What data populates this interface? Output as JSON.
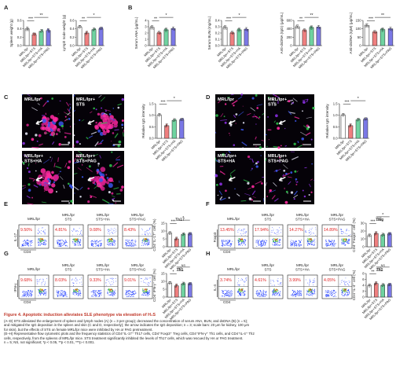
{
  "colors": {
    "g1": "#ffffff",
    "g2": "#ef7f7f",
    "g3": "#6fd3a0",
    "g4": "#7b78e6",
    "sig": "#111111",
    "red_text": "#e02020",
    "stroke": "#333333"
  },
  "group_labels": [
    "MRL/lpr",
    "MRL/lpr+STS",
    "MRL/lpr+STS+HA",
    "MRL/lpr+STS+PAG"
  ],
  "panel_letters": [
    "A",
    "B",
    "C",
    "D",
    "E",
    "F",
    "G",
    "H"
  ],
  "panelA": [
    {
      "ylabel": "Spleen weight (g)",
      "yticks": [
        "0.0",
        "0.2",
        "0.4",
        "0.6"
      ],
      "ylim": [
        0,
        0.6
      ],
      "values": [
        0.4,
        0.26,
        0.34,
        0.36
      ],
      "sig": [
        {
          "from": 0,
          "to": 1,
          "label": "***",
          "level": 1
        },
        {
          "from": 1,
          "to": 3,
          "label": "**",
          "level": 2
        }
      ]
    },
    {
      "ylabel": "Lymph node weight (g)",
      "yticks": [
        "0.0",
        "0.2",
        "0.4",
        "0.6"
      ],
      "ylim": [
        0,
        0.6
      ],
      "values": [
        0.44,
        0.3,
        0.38,
        0.4
      ],
      "sig": [
        {
          "from": 0,
          "to": 1,
          "label": "**",
          "level": 1
        },
        {
          "from": 1,
          "to": 3,
          "label": "*",
          "level": 2
        }
      ]
    }
  ],
  "panelB": [
    {
      "ylabel": "Serum ANA (μg/mL)",
      "yticks": [
        "0",
        "1",
        "2",
        "3",
        "4"
      ],
      "ylim": [
        0,
        4
      ],
      "values": [
        2.9,
        2.0,
        2.5,
        2.7
      ],
      "sig": [
        {
          "from": 0,
          "to": 1,
          "label": "**",
          "level": 1
        },
        {
          "from": 1,
          "to": 3,
          "label": "*",
          "level": 2
        }
      ]
    },
    {
      "ylabel": "Serum BUN (mg/mL)",
      "yticks": [
        "0.0",
        "0.1",
        "0.2",
        "0.3",
        "0.4"
      ],
      "ylim": [
        0,
        0.4
      ],
      "values": [
        0.29,
        0.2,
        0.25,
        0.26
      ],
      "sig": [
        {
          "from": 0,
          "to": 1,
          "label": "***",
          "level": 1
        },
        {
          "from": 1,
          "to": 3,
          "label": "*",
          "level": 2
        }
      ]
    },
    {
      "ylabel": "Anti-dsDNA (IgG) (μg/mL)",
      "yticks": [
        "0",
        "200",
        "400",
        "600"
      ],
      "ylim": [
        0,
        600
      ],
      "values": [
        450,
        360,
        430,
        440
      ],
      "sig": [
        {
          "from": 0,
          "to": 1,
          "label": "**",
          "level": 1
        },
        {
          "from": 1,
          "to": 3,
          "label": "**",
          "level": 2
        }
      ]
    },
    {
      "ylabel": "Anti-dsDNA (IgM) (μg/mL)",
      "yticks": [
        "0",
        "50",
        "100",
        "150"
      ],
      "ylim": [
        0,
        150
      ],
      "values": [
        120,
        80,
        95,
        100
      ],
      "sig": [
        {
          "from": 0,
          "to": 1,
          "label": "***",
          "level": 1
        },
        {
          "from": 1,
          "to": 3,
          "label": "**",
          "level": 2
        }
      ]
    }
  ],
  "panelC": {
    "ylabel": "Relative IgG intensity",
    "yticks": [
      "0.0",
      "0.5",
      "1.0",
      "1.5"
    ],
    "ylim": [
      0,
      1.5
    ],
    "values": [
      1.0,
      0.55,
      0.78,
      0.8
    ],
    "sig": [
      {
        "from": 0,
        "to": 1,
        "label": "***",
        "level": 1
      },
      {
        "from": 1,
        "to": 3,
        "label": "*",
        "level": 2
      }
    ],
    "image_labels": [
      [
        "MRL/lpr"
      ],
      [
        "MRL/lpr+",
        "STS"
      ],
      [
        "MRL/lpr+",
        "STS+HA"
      ],
      [
        "MRL/lpr+",
        "STS+PAG"
      ]
    ]
  },
  "panelD": {
    "ylabel": "Relative IgG intensity",
    "yticks": [
      "0.0",
      "0.5",
      "1.0",
      "1.5"
    ],
    "ylim": [
      0,
      1.5
    ],
    "values": [
      1.0,
      0.55,
      0.8,
      0.82
    ],
    "sig": [
      {
        "from": 0,
        "to": 1,
        "label": "***",
        "level": 1
      },
      {
        "from": 1,
        "to": 3,
        "label": "*",
        "level": 2
      }
    ],
    "image_labels": [
      [
        "MRL/lpr"
      ],
      [
        "MRL/lpr+",
        "STS"
      ],
      [
        "MRL/lpr+",
        "STS+HA"
      ],
      [
        "MRL/lpr+",
        "STS+PAG"
      ]
    ]
  },
  "flow": [
    {
      "id": "E",
      "xaxis": "CD4",
      "yaxis": "IL-17",
      "percents": [
        "9.50%",
        "4.81%",
        "9.08%",
        "8.43%"
      ],
      "chart_title": "Th17",
      "ylabel": "CD4⁺IL-17⁺ cell (%)",
      "yticks": [
        "0",
        "5",
        "10",
        "15"
      ],
      "ylim": [
        0,
        15
      ],
      "values": [
        8.5,
        5.0,
        7.8,
        8.0
      ],
      "sig": [
        {
          "from": 0,
          "to": 1,
          "label": "***",
          "level": 1
        },
        {
          "from": 1,
          "to": 3,
          "label": "*",
          "level": 2
        }
      ]
    },
    {
      "id": "F",
      "xaxis": "CD4",
      "yaxis": "Foxp3",
      "percents": [
        "13.45%",
        "17.94%",
        "14.27%",
        "14.89%"
      ],
      "chart_title": "Treg",
      "ylabel": "CD4⁺Foxp3⁺ cell (%)",
      "yticks": [
        "0",
        "10",
        "20",
        "30"
      ],
      "ylim": [
        0,
        30
      ],
      "values": [
        14,
        17,
        15,
        16
      ],
      "sig": [
        {
          "from": 0,
          "to": 1,
          "label": "***",
          "level": 1
        },
        {
          "from": 1,
          "to": 2,
          "label": "NS",
          "level": 2
        },
        {
          "from": 1,
          "to": 3,
          "label": "*",
          "level": 3
        }
      ]
    },
    {
      "id": "G",
      "xaxis": "CD4",
      "yaxis": "IFN-γ",
      "percents": [
        "9.68%",
        "8.03%",
        "9.33%",
        "9.01%"
      ],
      "chart_title": "Th1",
      "ylabel": "CD4⁺IFN-γ⁺ cell (%)",
      "yticks": [
        "0",
        "5",
        "10",
        "15"
      ],
      "ylim": [
        0,
        15
      ],
      "values": [
        8.8,
        7.2,
        8.4,
        8.2
      ],
      "sig": [
        {
          "from": 0,
          "to": 1,
          "label": "*",
          "level": 1
        },
        {
          "from": 1,
          "to": 2,
          "label": "NS",
          "level": 2
        },
        {
          "from": 1,
          "to": 3,
          "label": "NS",
          "level": 3
        }
      ]
    },
    {
      "id": "H",
      "xaxis": "CD4",
      "yaxis": "IL-4",
      "percents": [
        "3.74%",
        "4.61%",
        "3.99%",
        "4.05%"
      ],
      "chart_title": "Th2",
      "ylabel": "CD4⁺IL-4⁺ cell (%)",
      "yticks": [
        "0",
        "2",
        "4",
        "6",
        "8"
      ],
      "ylim": [
        0,
        8
      ],
      "values": [
        3.8,
        4.6,
        4.0,
        4.1
      ],
      "sig": [
        {
          "from": 0,
          "to": 1,
          "label": "**",
          "level": 1
        },
        {
          "from": 1,
          "to": 2,
          "label": "NS",
          "level": 2
        },
        {
          "from": 1,
          "to": 3,
          "label": "NS",
          "level": 3
        }
      ]
    }
  ],
  "caption": {
    "title": "Figure 4. Apoptotic induction alleviates SLE phenotype via elevation of H₂S",
    "lines": [
      "(A–D) STS alleviated the enlargement of spleen and lymph nodes (A) (n = 3 per group); decreased the concentration of serum ANA, BUN, and dsDNA (B) (n = 5);",
      "and mitigated the IgG deposition in the spleen and skin (C and D, respectively); the arrow indicates the IgG deposition; n = 3; scale bars: 20 μm for kidney, 100 μm",
      "for skin), but the effects of STS on female MRL/lpr mice were inhibited by HA or PAG pretreatment.",
      "(E–H) Representative flow cytometric plots and the frequency statistics of CD4⁺IL-17⁺ Th17 cells, CD4⁺Foxp3⁺ Treg cells, CD4⁺IFN-γ⁺ Th1 cells, and CD4⁺IL-4⁺ Th2",
      "cells, respectively, from the spleens of MRL/lpr mice. STS treatment significantly inhibited the levels of Th17 cells, which was rescued by HA or PAG treatment.",
      "n = 5; NS, not significant; *p < 0.05, **p < 0.01, ***p < 0.001."
    ]
  }
}
